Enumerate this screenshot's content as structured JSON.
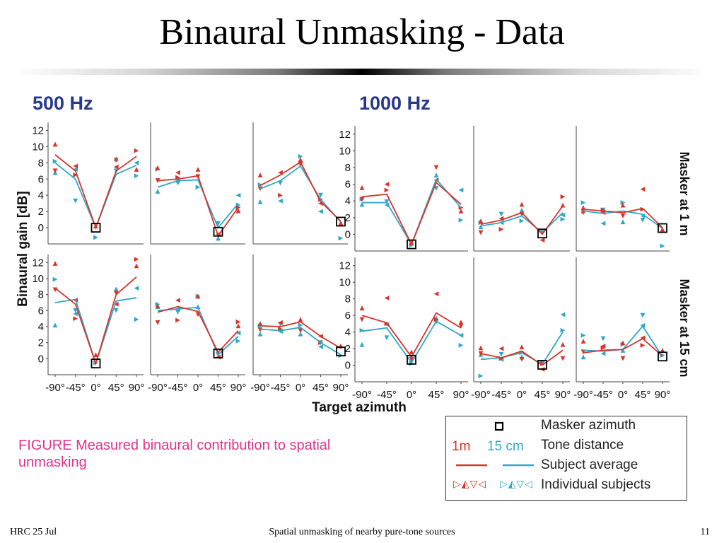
{
  "slide": {
    "title": "Binaural Unmasking - Data",
    "footer_left": "HRC 25 Jul",
    "footer_center": "Spatial unmasking of nearby pure-tone sources",
    "footer_right": "11",
    "caption": "FIGURE Measured binaural contribution to spatial unmasking"
  },
  "colors": {
    "red": "#d9342b",
    "cyan": "#2ea8c6",
    "caption": "#e0338c",
    "heading": "#27388e"
  },
  "legend": {
    "masker_azimuth": "Masker azimuth",
    "label_1m": "1m",
    "label_15cm": "15 cm",
    "tone_distance": "Tone distance",
    "subject_average": "Subject average",
    "individual_subjects": "Individual subjects",
    "red_markers": "▷◭▽◁",
    "cyan_markers": "▷◭▽◁"
  },
  "chart_data": {
    "type": "line",
    "frequencies": [
      "500 Hz",
      "1000 Hz"
    ],
    "rows": [
      "Masker at 1 m",
      "Masker at 15 cm"
    ],
    "ylabel": "Binaural gain [dB]",
    "xlabel": "Target azimuth",
    "x_ticks": [
      "-90°",
      "-45°",
      "0°",
      "45°",
      "90°"
    ],
    "x_values": [
      -90,
      -45,
      0,
      45,
      90
    ],
    "yticks": [
      0,
      2,
      4,
      6,
      8,
      10,
      12
    ],
    "ylim": [
      -2,
      13
    ],
    "series_names": [
      "1m",
      "15 cm"
    ],
    "panels": [
      {
        "freq": "500 Hz",
        "row": "Masker at 1 m",
        "masker": 0,
        "red": [
          9,
          7,
          0,
          7,
          8.8
        ],
        "cyan": [
          8,
          6,
          0,
          6.6,
          7.7
        ],
        "pts_red": [
          [
            -90,
            10.3
          ],
          [
            -90,
            7
          ],
          [
            -45,
            7.6
          ],
          [
            -45,
            6.5
          ],
          [
            0,
            0.2
          ],
          [
            45,
            8.3
          ],
          [
            45,
            7.5
          ],
          [
            90,
            9.5
          ],
          [
            90,
            7.2
          ]
        ],
        "pts_cyan": [
          [
            -90,
            8.2
          ],
          [
            -90,
            6.8
          ],
          [
            -45,
            3.3
          ],
          [
            -45,
            7.2
          ],
          [
            0,
            -1.2
          ],
          [
            45,
            8.5
          ],
          [
            45,
            7
          ],
          [
            90,
            8
          ],
          [
            90,
            6.4
          ]
        ]
      },
      {
        "freq": "500 Hz",
        "row": "Masker at 1 m",
        "masker": 45,
        "red": [
          5.8,
          6,
          6.4,
          -1,
          2.5
        ],
        "cyan": [
          5,
          5.8,
          5.9,
          0,
          3
        ],
        "pts_red": [
          [
            -90,
            7.4
          ],
          [
            -90,
            5.8
          ],
          [
            -45,
            6.8
          ],
          [
            -45,
            6.2
          ],
          [
            0,
            7.2
          ],
          [
            0,
            6.3
          ],
          [
            45,
            -0.8
          ],
          [
            90,
            2.5
          ],
          [
            90,
            2.1
          ]
        ],
        "pts_cyan": [
          [
            -90,
            7.2
          ],
          [
            -90,
            4.5
          ],
          [
            -45,
            5.5
          ],
          [
            -45,
            5.8
          ],
          [
            0,
            5
          ],
          [
            45,
            -1.3
          ],
          [
            45,
            0.5
          ],
          [
            90,
            4
          ],
          [
            90,
            2.8
          ]
        ]
      },
      {
        "freq": "500 Hz",
        "row": "Masker at 1 m",
        "masker": 90,
        "red": [
          5.2,
          6.5,
          8.1,
          3.2,
          0.8
        ],
        "cyan": [
          4.8,
          5.8,
          7.6,
          3.5,
          0.7
        ],
        "pts_red": [
          [
            -90,
            6.5
          ],
          [
            -90,
            4.8
          ],
          [
            -45,
            6.8
          ],
          [
            -45,
            4
          ],
          [
            0,
            8.4
          ],
          [
            0,
            7.8
          ],
          [
            45,
            3
          ],
          [
            45,
            3.5
          ],
          [
            90,
            0.6
          ]
        ],
        "pts_cyan": [
          [
            -90,
            5.3
          ],
          [
            -90,
            3.2
          ],
          [
            -45,
            5.5
          ],
          [
            -45,
            3.3
          ],
          [
            0,
            8.8
          ],
          [
            0,
            8.3
          ],
          [
            45,
            4
          ],
          [
            45,
            2
          ],
          [
            90,
            -1.3
          ]
        ]
      },
      {
        "freq": "1000 Hz",
        "row": "Masker at 1 m",
        "masker": 0,
        "red": [
          4.5,
          4.8,
          -1.2,
          6.2,
          3.6
        ],
        "cyan": [
          3.8,
          3.8,
          -1.2,
          6.6,
          3.2
        ],
        "pts_red": [
          [
            -90,
            5.6
          ],
          [
            -90,
            4.2
          ],
          [
            -45,
            6
          ],
          [
            -45,
            5.3
          ],
          [
            0,
            -1
          ],
          [
            45,
            8
          ],
          [
            45,
            6.5
          ],
          [
            90,
            3.2
          ],
          [
            90,
            2.8
          ]
        ],
        "pts_cyan": [
          [
            -90,
            4.2
          ],
          [
            -90,
            3.6
          ],
          [
            -45,
            3.9
          ],
          [
            -45,
            3.5
          ],
          [
            0,
            -1.3
          ],
          [
            45,
            7.1
          ],
          [
            45,
            5.5
          ],
          [
            90,
            5.3
          ],
          [
            90,
            1.7
          ]
        ]
      },
      {
        "freq": "1000 Hz",
        "row": "Masker at 1 m",
        "masker": 45,
        "red": [
          1.2,
          1.7,
          2.6,
          0,
          3.4
        ],
        "cyan": [
          1,
          1.4,
          2.2,
          0.2,
          2.6
        ],
        "pts_red": [
          [
            -90,
            1.6
          ],
          [
            -90,
            0.2
          ],
          [
            -45,
            1.9
          ],
          [
            -45,
            0.6
          ],
          [
            0,
            3.6
          ],
          [
            0,
            2.4
          ],
          [
            45,
            -0.7
          ],
          [
            90,
            4.5
          ],
          [
            90,
            3.5
          ]
        ],
        "pts_cyan": [
          [
            -90,
            1.4
          ],
          [
            -90,
            0.9
          ],
          [
            -45,
            2.4
          ],
          [
            -45,
            1.4
          ],
          [
            0,
            1.6
          ],
          [
            0,
            2.9
          ],
          [
            45,
            0.2
          ],
          [
            90,
            2.3
          ],
          [
            90,
            1.8
          ]
        ]
      },
      {
        "freq": "1000 Hz",
        "row": "Masker at 1 m",
        "masker": 90,
        "red": [
          3,
          2.8,
          2.6,
          3.1,
          0.8
        ],
        "cyan": [
          2.8,
          2.5,
          2.8,
          2.4,
          0.7
        ],
        "pts_red": [
          [
            -90,
            3.2
          ],
          [
            -90,
            2.6
          ],
          [
            -45,
            2.6
          ],
          [
            -45,
            2.9
          ],
          [
            0,
            3.5
          ],
          [
            0,
            2.2
          ],
          [
            45,
            5.4
          ],
          [
            45,
            3
          ],
          [
            90,
            0.6
          ]
        ],
        "pts_cyan": [
          [
            -90,
            3.8
          ],
          [
            -90,
            2.8
          ],
          [
            -45,
            2.9
          ],
          [
            -45,
            1.3
          ],
          [
            0,
            3.8
          ],
          [
            0,
            1.5
          ],
          [
            45,
            1.7
          ],
          [
            45,
            2.2
          ],
          [
            90,
            -1.4
          ]
        ]
      },
      {
        "freq": "500 Hz",
        "row": "Masker at 15 cm",
        "masker": 0,
        "red": [
          8.8,
          6.8,
          -0.6,
          8,
          10.2
        ],
        "cyan": [
          7,
          7.4,
          -0.6,
          7.2,
          7.6
        ],
        "pts_red": [
          [
            -90,
            11.9
          ],
          [
            -90,
            8.6
          ],
          [
            -45,
            7.3
          ],
          [
            -45,
            5
          ],
          [
            0,
            0.5
          ],
          [
            45,
            8.2
          ],
          [
            45,
            6.8
          ],
          [
            90,
            12.4
          ],
          [
            90,
            11.6
          ]
        ],
        "pts_cyan": [
          [
            -90,
            9.9
          ],
          [
            -90,
            4.2
          ],
          [
            -45,
            6
          ],
          [
            -45,
            5.6
          ],
          [
            0,
            -0.5
          ],
          [
            45,
            8.7
          ],
          [
            45,
            6
          ],
          [
            90,
            8.8
          ],
          [
            90,
            4.9
          ]
        ]
      },
      {
        "freq": "500 Hz",
        "row": "Masker at 15 cm",
        "masker": 45,
        "red": [
          5.8,
          6.5,
          5.9,
          0.8,
          3.5
        ],
        "cyan": [
          6,
          6.2,
          6.4,
          0.5,
          2.8
        ],
        "pts_red": [
          [
            -90,
            6.6
          ],
          [
            -90,
            4.5
          ],
          [
            -45,
            7.3
          ],
          [
            -45,
            4.8
          ],
          [
            0,
            7.8
          ],
          [
            0,
            5.5
          ],
          [
            45,
            0.2
          ],
          [
            90,
            4.6
          ],
          [
            90,
            4.1
          ]
        ],
        "pts_cyan": [
          [
            -90,
            6.8
          ],
          [
            -90,
            6.5
          ],
          [
            -45,
            5.8
          ],
          [
            -45,
            6.2
          ],
          [
            0,
            7.8
          ],
          [
            0,
            6.5
          ],
          [
            45,
            0.5
          ],
          [
            90,
            3.2
          ],
          [
            90,
            2.2
          ]
        ]
      },
      {
        "freq": "500 Hz",
        "row": "Masker at 15 cm",
        "masker": 90,
        "red": [
          4.1,
          4,
          4.6,
          2.8,
          1.3
        ],
        "cyan": [
          3.7,
          3.5,
          3.9,
          2,
          0.5
        ],
        "pts_red": [
          [
            -90,
            4.4
          ],
          [
            -90,
            3.6
          ],
          [
            -45,
            4.5
          ],
          [
            -45,
            3.7
          ],
          [
            0,
            4.9
          ],
          [
            0,
            3.5
          ],
          [
            45,
            2.8
          ],
          [
            45,
            2
          ],
          [
            90,
            1.6
          ]
        ],
        "pts_cyan": [
          [
            -90,
            4.1
          ],
          [
            -90,
            3.1
          ],
          [
            -45,
            4.3
          ],
          [
            -45,
            3.4
          ],
          [
            0,
            4.2
          ],
          [
            0,
            3.1
          ],
          [
            45,
            2
          ],
          [
            45,
            1.5
          ],
          [
            90,
            0.4
          ]
        ]
      },
      {
        "freq": "1000 Hz",
        "row": "Masker at 15 cm",
        "masker": 0,
        "red": [
          6,
          5.1,
          1,
          6.3,
          4.5
        ],
        "cyan": [
          4.1,
          4.5,
          0.3,
          5.3,
          3.6
        ],
        "pts_red": [
          [
            -90,
            6.9
          ],
          [
            -90,
            5.5
          ],
          [
            -45,
            8.1
          ],
          [
            -45,
            5
          ],
          [
            0,
            1.6
          ],
          [
            0,
            0.7
          ],
          [
            45,
            8.6
          ],
          [
            45,
            5.5
          ],
          [
            90,
            5.2
          ],
          [
            90,
            4.7
          ]
        ],
        "pts_cyan": [
          [
            -90,
            4.2
          ],
          [
            -90,
            2.5
          ],
          [
            -45,
            3.3
          ],
          [
            -45,
            4.9
          ],
          [
            0,
            0.2
          ],
          [
            45,
            5.7
          ],
          [
            45,
            5.2
          ],
          [
            90,
            3.6
          ],
          [
            90,
            2.4
          ]
        ]
      },
      {
        "freq": "1000 Hz",
        "row": "Masker at 15 cm",
        "masker": 45,
        "red": [
          1.4,
          0.9,
          1.7,
          0,
          1.8
        ],
        "cyan": [
          0.7,
          0.9,
          1.5,
          0.1,
          4
        ],
        "pts_red": [
          [
            -90,
            2.1
          ],
          [
            -90,
            1.4
          ],
          [
            -45,
            2
          ],
          [
            -45,
            0.8
          ],
          [
            0,
            2.2
          ],
          [
            0,
            0.7
          ],
          [
            45,
            -0.5
          ],
          [
            45,
            0.2
          ],
          [
            90,
            2.5
          ],
          [
            90,
            0.8
          ]
        ],
        "pts_cyan": [
          [
            -90,
            -1.3
          ],
          [
            -90,
            1.3
          ],
          [
            -45,
            1.3
          ],
          [
            -45,
            0.7
          ],
          [
            0,
            1.5
          ],
          [
            0,
            1
          ],
          [
            45,
            0.3
          ],
          [
            90,
            6.1
          ],
          [
            90,
            4.2
          ]
        ]
      },
      {
        "freq": "1000 Hz",
        "row": "Masker at 15 cm",
        "masker": 90,
        "red": [
          1.5,
          1.8,
          1.9,
          3.2,
          1.1
        ],
        "cyan": [
          1.8,
          1.7,
          1.9,
          4.7,
          1
        ],
        "pts_red": [
          [
            -90,
            2.9
          ],
          [
            -90,
            1.6
          ],
          [
            -45,
            2.3
          ],
          [
            -45,
            2.1
          ],
          [
            0,
            2.7
          ],
          [
            0,
            0.8
          ],
          [
            45,
            3.3
          ],
          [
            45,
            2.4
          ],
          [
            90,
            1.8
          ]
        ],
        "pts_cyan": [
          [
            -90,
            3.6
          ],
          [
            -90,
            1
          ],
          [
            -45,
            3.2
          ],
          [
            -45,
            1.4
          ],
          [
            0,
            2.5
          ],
          [
            0,
            1.8
          ],
          [
            45,
            6
          ],
          [
            45,
            4.8
          ],
          [
            90,
            1.2
          ]
        ]
      }
    ]
  }
}
